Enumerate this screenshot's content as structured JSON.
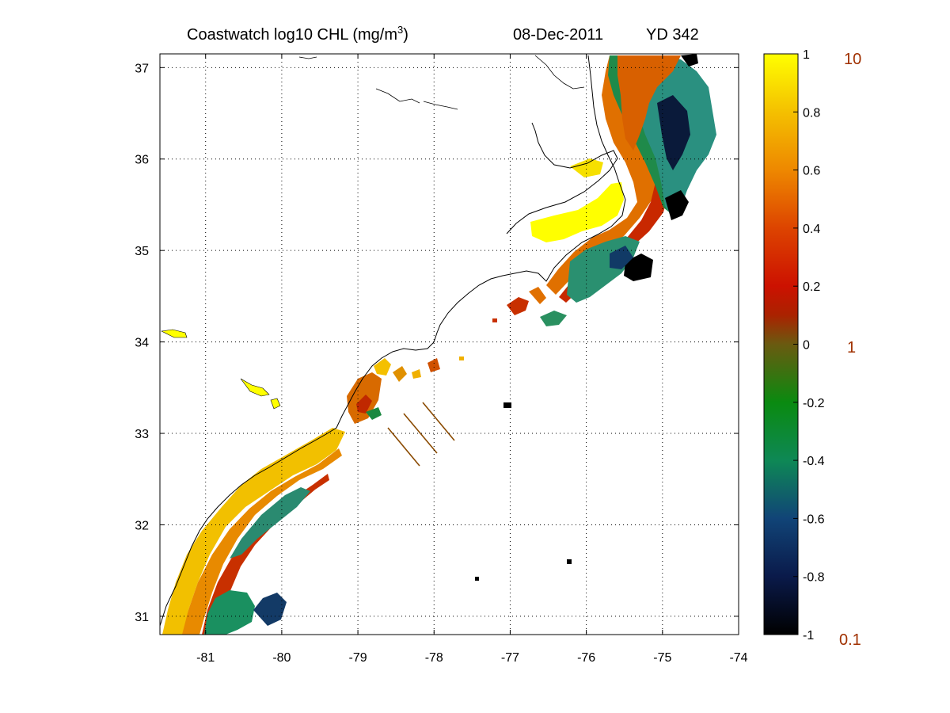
{
  "title": {
    "product": "Coastwatch  log10  CHL (mg/m",
    "unit_superscript": "3",
    "unit_close": ")",
    "date": "08-Dec-2011",
    "yearday": "YD 342"
  },
  "map": {
    "lon_range": [
      -81.6,
      -74.0
    ],
    "lat_range": [
      30.8,
      37.15
    ],
    "lon_ticks": [
      "-81",
      "-80",
      "-79",
      "-78",
      "-77",
      "-76",
      "-75",
      "-74"
    ],
    "lat_ticks": [
      "31",
      "32",
      "33",
      "34",
      "35",
      "36",
      "37"
    ],
    "grid": true,
    "grid_style": "dotted"
  },
  "colorbar": {
    "range": [
      -1,
      1
    ],
    "ticks": [
      "1",
      "0.8",
      "0.6",
      "0.4",
      "0.2",
      "0",
      "-0.2",
      "-0.4",
      "-0.6",
      "-0.8",
      "-1"
    ],
    "concentration_labels": {
      "high": "10",
      "mid": "1",
      "low": "0.1"
    },
    "concentration_color": "#a03000",
    "colormap": [
      "#000000",
      "#0a1a4a",
      "#114477",
      "#0e8855",
      "#0a8a10",
      "#8a3a00",
      "#cc1100",
      "#dd4400",
      "#ee8800",
      "#f4c000",
      "#ffff00"
    ]
  }
}
